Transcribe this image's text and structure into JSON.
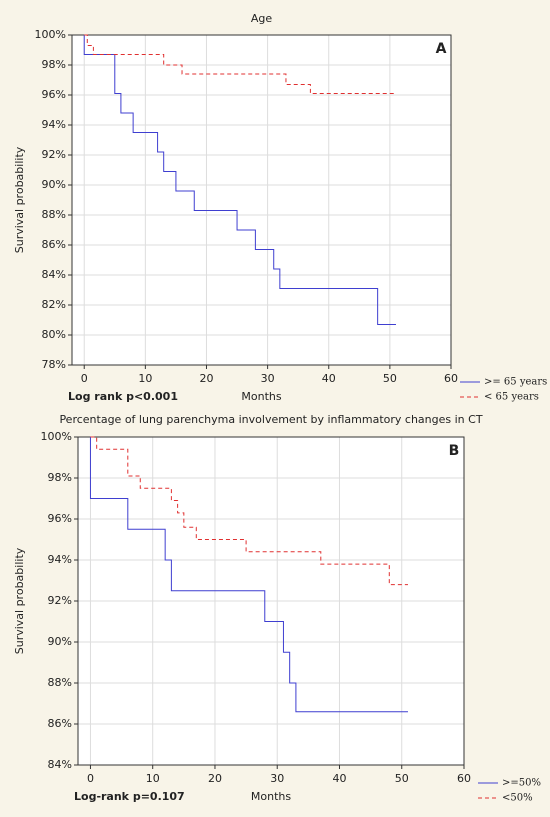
{
  "chart_data": [
    {
      "type": "step",
      "title": "Age",
      "panel_label": "A",
      "y_label": "Survival probability",
      "x_label": "Months",
      "annotation": "Log rank p<0.001",
      "xlim": [
        -2,
        60
      ],
      "xticks": [
        0,
        10,
        20,
        30,
        40,
        50,
        60
      ],
      "ylim": [
        78,
        100
      ],
      "yticks": [
        {
          "value": 78,
          "label": "78%"
        },
        {
          "value": 80,
          "label": "80%"
        },
        {
          "value": 82,
          "label": "82%"
        },
        {
          "value": 84,
          "label": "84%"
        },
        {
          "value": 86,
          "label": "86%"
        },
        {
          "value": 88,
          "label": "88%"
        },
        {
          "value": 90,
          "label": "90%"
        },
        {
          "value": 92,
          "label": "92%"
        },
        {
          "value": 94,
          "label": "94%"
        },
        {
          "value": 96,
          "label": "96%"
        },
        {
          "value": 98,
          "label": "98%"
        },
        {
          "value": 100,
          "label": "100%"
        }
      ],
      "grid": true,
      "series": [
        {
          "name": ">= 65 years",
          "color": "#3f3fd0",
          "dash": false,
          "x": [
            0,
            0,
            5,
            6,
            8,
            12,
            13,
            15,
            18,
            25,
            28,
            31,
            32,
            48,
            51
          ],
          "values": [
            100,
            98.7,
            96.1,
            94.8,
            93.5,
            92.2,
            90.9,
            89.6,
            88.3,
            87.0,
            85.7,
            84.4,
            83.1,
            80.7,
            80.7
          ]
        },
        {
          "name": "< 65 years",
          "color": "#e03030",
          "dash": true,
          "x": [
            0,
            0.5,
            1.5,
            13,
            16,
            33,
            37,
            51
          ],
          "values": [
            100,
            99.3,
            98.7,
            98.0,
            97.4,
            96.7,
            96.1,
            96.1
          ]
        }
      ]
    },
    {
      "type": "step",
      "title": "Percentage of lung parenchyma involvement by inflammatory changes in CT",
      "panel_label": "B",
      "y_label": "Survival probability",
      "x_label": "Months",
      "annotation": "Log-rank p=0.107",
      "xlim": [
        -2,
        60
      ],
      "xticks": [
        0,
        10,
        20,
        30,
        40,
        50,
        60
      ],
      "ylim": [
        84,
        100
      ],
      "yticks": [
        {
          "value": 84,
          "label": "84%"
        },
        {
          "value": 86,
          "label": "86%"
        },
        {
          "value": 88,
          "label": "88%"
        },
        {
          "value": 90,
          "label": "90%"
        },
        {
          "value": 92,
          "label": "92%"
        },
        {
          "value": 94,
          "label": "94%"
        },
        {
          "value": 96,
          "label": "96%"
        },
        {
          "value": 98,
          "label": "98%"
        },
        {
          "value": 100,
          "label": "100%"
        }
      ],
      "grid": true,
      "series": [
        {
          "name": ">=50%",
          "color": "#3f3fd0",
          "dash": false,
          "x": [
            0,
            0,
            6,
            12,
            13,
            28,
            31,
            32,
            33,
            51
          ],
          "values": [
            100,
            97.0,
            95.5,
            94.0,
            92.5,
            91.0,
            89.5,
            88.0,
            86.6,
            86.6
          ]
        },
        {
          "name": "<50%",
          "color": "#e03030",
          "dash": true,
          "x": [
            0,
            1,
            6,
            8,
            13,
            14,
            15,
            17,
            25,
            37,
            48,
            51
          ],
          "values": [
            100,
            99.4,
            98.1,
            97.5,
            96.9,
            96.3,
            95.6,
            95.0,
            94.4,
            93.8,
            92.8,
            92.8
          ]
        }
      ]
    }
  ]
}
